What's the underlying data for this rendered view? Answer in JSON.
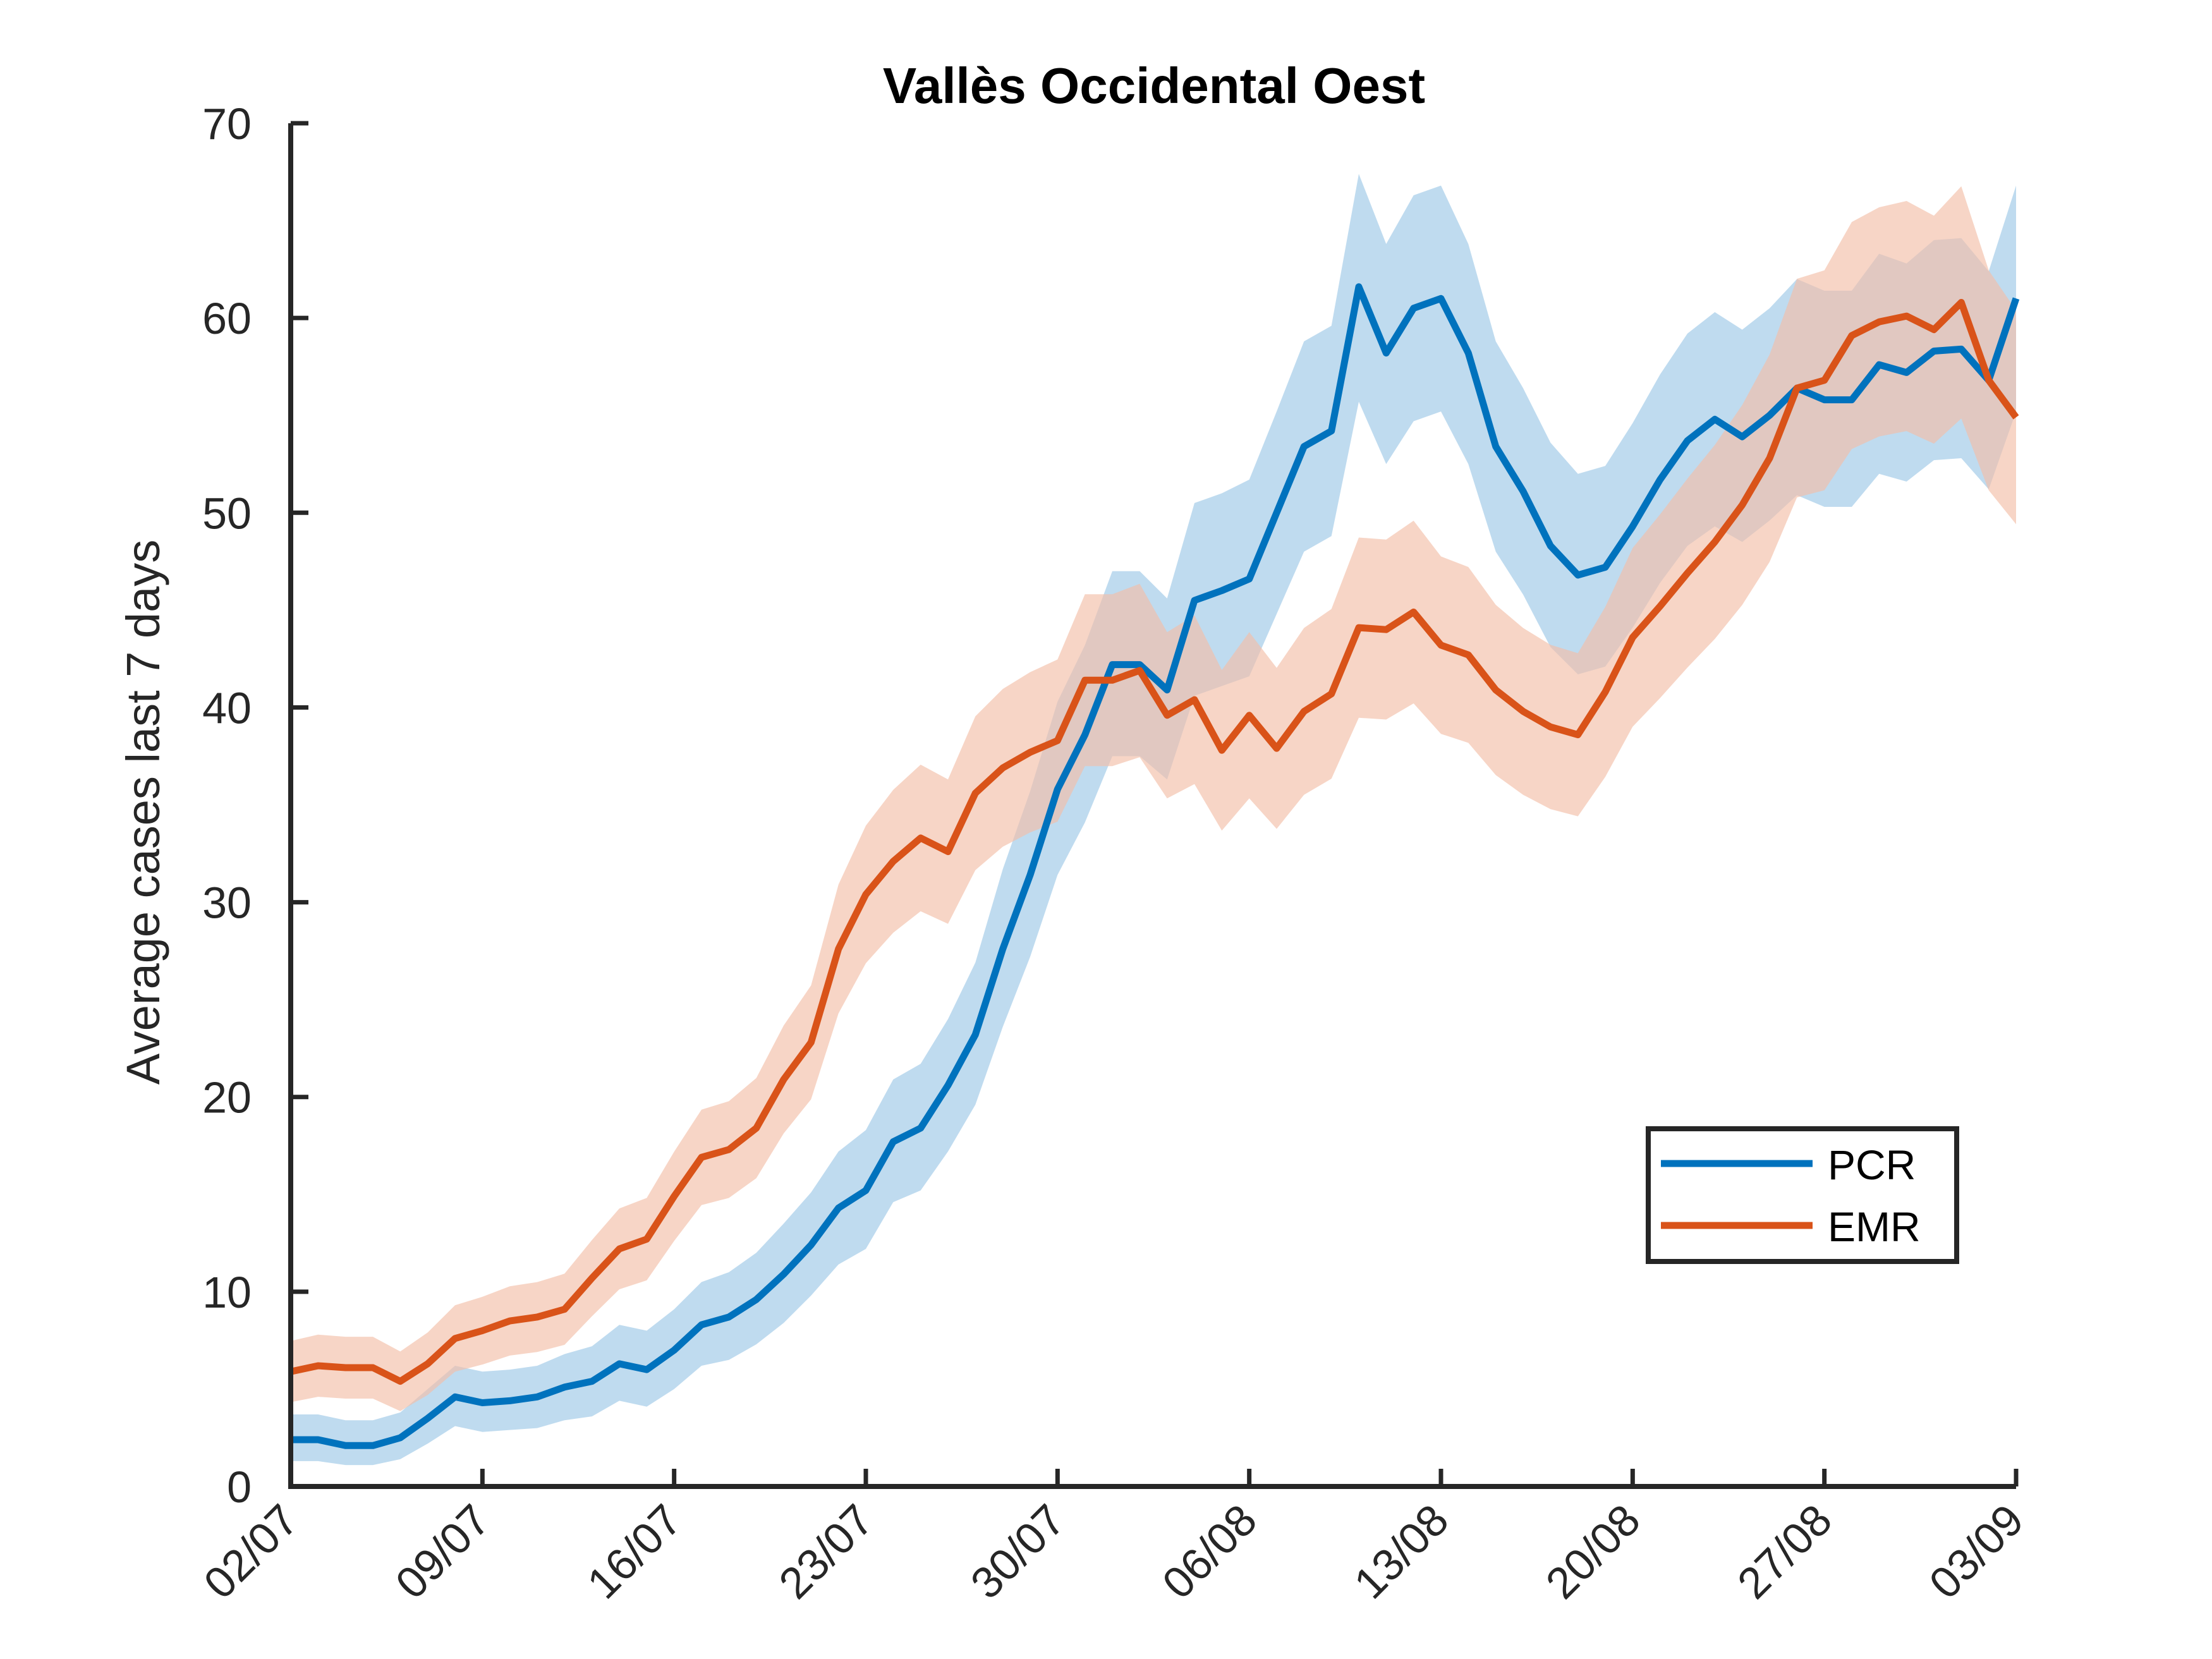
{
  "chart_data": {
    "type": "line",
    "title": "Vallès Occidental Oest",
    "xlabel": "",
    "ylabel": "Average cases last 7 days",
    "ylim": [
      0,
      70
    ],
    "yticks": [
      0,
      10,
      20,
      30,
      40,
      50,
      60,
      70
    ],
    "xtick_labels": [
      "02/07",
      "09/07",
      "16/07",
      "23/07",
      "30/07",
      "06/08",
      "13/08",
      "20/08",
      "27/08",
      "03/09"
    ],
    "x_start": "02/07",
    "x_end": "03/09",
    "grid": false,
    "legend": "lower-right",
    "series": [
      {
        "name": "PCR",
        "color": "#0072BD",
        "band_color": "#9DC8E6",
        "values": [
          2.4,
          2.4,
          2.1,
          2.1,
          2.5,
          3.5,
          4.6,
          4.3,
          4.4,
          4.6,
          5.1,
          5.4,
          6.3,
          6.0,
          7.0,
          8.3,
          8.7,
          9.6,
          10.9,
          12.4,
          14.3,
          15.2,
          17.7,
          18.4,
          20.6,
          23.2,
          27.6,
          31.4,
          35.8,
          38.6,
          42.2,
          42.2,
          40.9,
          45.5,
          46.0,
          46.6,
          50.0,
          53.4,
          54.2,
          61.6,
          58.2,
          60.5,
          61.0,
          58.2,
          53.4,
          51.1,
          48.3,
          46.8,
          47.2,
          49.3,
          51.7,
          53.7,
          54.8,
          53.9,
          55.0,
          56.4,
          55.8,
          55.8,
          57.6,
          57.2,
          58.3,
          58.4,
          56.8,
          61.0
        ],
        "lower": [
          1.3,
          1.3,
          1.1,
          1.1,
          1.4,
          2.2,
          3.1,
          2.8,
          2.9,
          3.0,
          3.4,
          3.6,
          4.4,
          4.1,
          5.0,
          6.2,
          6.5,
          7.3,
          8.4,
          9.8,
          11.4,
          12.2,
          14.6,
          15.2,
          17.2,
          19.6,
          23.6,
          27.2,
          31.4,
          34.1,
          37.5,
          37.5,
          36.3,
          40.6,
          41.1,
          41.6,
          44.8,
          48.0,
          48.8,
          55.7,
          52.5,
          54.7,
          55.2,
          52.5,
          48.0,
          45.8,
          43.1,
          41.7,
          42.1,
          44.1,
          46.4,
          48.3,
          49.3,
          48.5,
          49.6,
          50.9,
          50.3,
          50.3,
          52.0,
          51.6,
          52.7,
          52.8,
          51.2,
          55.2
        ],
        "upper": [
          3.7,
          3.7,
          3.4,
          3.4,
          3.8,
          5.0,
          6.2,
          5.9,
          6.0,
          6.2,
          6.8,
          7.2,
          8.3,
          8.0,
          9.1,
          10.5,
          11.0,
          12.0,
          13.5,
          15.1,
          17.2,
          18.3,
          20.9,
          21.7,
          24.0,
          26.9,
          31.7,
          35.7,
          40.3,
          43.2,
          47.0,
          47.0,
          45.6,
          50.5,
          51.0,
          51.7,
          55.2,
          58.8,
          59.6,
          67.4,
          63.8,
          66.3,
          66.8,
          63.8,
          58.8,
          56.4,
          53.6,
          52.0,
          52.4,
          54.6,
          57.1,
          59.2,
          60.3,
          59.4,
          60.5,
          62.0,
          61.4,
          61.4,
          63.3,
          62.8,
          64.0,
          64.1,
          62.4,
          66.8
        ]
      },
      {
        "name": "EMR",
        "color": "#D95319",
        "band_color": "#F2BFA8",
        "values": [
          5.9,
          6.2,
          6.1,
          6.1,
          5.4,
          6.3,
          7.6,
          8.0,
          8.5,
          8.7,
          9.1,
          10.7,
          12.2,
          12.7,
          14.9,
          16.9,
          17.3,
          18.4,
          20.9,
          22.8,
          27.6,
          30.4,
          32.1,
          33.3,
          32.6,
          35.6,
          36.9,
          37.7,
          38.3,
          41.4,
          41.4,
          41.9,
          39.6,
          40.4,
          37.8,
          39.6,
          37.9,
          39.8,
          40.7,
          44.1,
          44.0,
          44.9,
          43.2,
          42.7,
          40.9,
          39.8,
          39.0,
          38.6,
          40.8,
          43.6,
          45.2,
          46.9,
          48.5,
          50.4,
          52.8,
          56.4,
          56.8,
          59.1,
          59.8,
          60.1,
          59.4,
          60.8,
          56.8,
          54.9
        ]
      }
    ]
  },
  "legend": {
    "items": [
      {
        "label": "PCR",
        "color": "#0072BD"
      },
      {
        "label": "EMR",
        "color": "#D95319"
      }
    ]
  },
  "colors": {
    "axis": "#262626",
    "pcr": "#0072BD",
    "emr": "#D95319"
  }
}
